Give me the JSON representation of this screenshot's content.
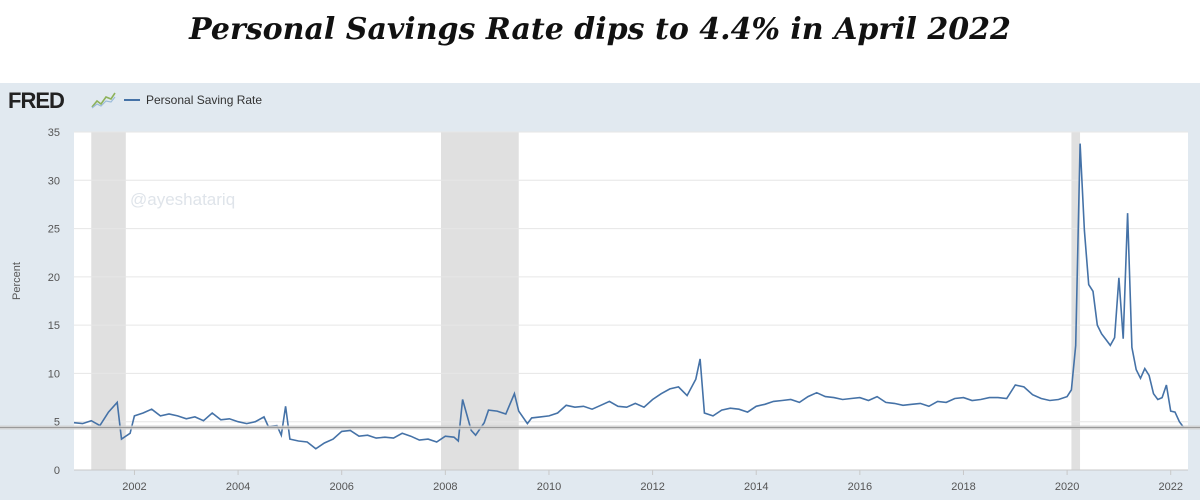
{
  "headline": "Personal Savings Rate dips to 4.4% in April 2022",
  "fred": {
    "logo_text": "FRED",
    "logo_icon": "fred-chart-icon",
    "legend_label": "Personal Saving Rate",
    "watermark": "@ayeshatariq"
  },
  "colors": {
    "line": "#4572a7",
    "recession_band": "#e0e0e0",
    "panel_background": "#e1e9f0",
    "plot_background": "#ffffff",
    "gridline": "#e6e6e6"
  },
  "chart_data": {
    "type": "line",
    "title": "",
    "xlabel": "",
    "ylabel": "Percent",
    "ylim": [
      0,
      35
    ],
    "yticks": [
      0,
      5,
      10,
      15,
      20,
      25,
      30,
      35
    ],
    "xlim": [
      "2000-11",
      "2022-05"
    ],
    "xticks": [
      "2002",
      "2004",
      "2006",
      "2008",
      "2010",
      "2012",
      "2014",
      "2016",
      "2018",
      "2020",
      "2022"
    ],
    "grid": true,
    "legend_position": "top-left",
    "recession_periods": [
      {
        "start": "2001-03",
        "end": "2001-11"
      },
      {
        "start": "2007-12",
        "end": "2009-06"
      },
      {
        "start": "2020-02",
        "end": "2020-04"
      }
    ],
    "series": [
      {
        "name": "Personal Saving Rate",
        "points": [
          [
            "2000-11",
            4.9
          ],
          [
            "2001-01",
            4.8
          ],
          [
            "2001-03",
            5.1
          ],
          [
            "2001-05",
            4.6
          ],
          [
            "2001-07",
            6.0
          ],
          [
            "2001-09",
            7.0
          ],
          [
            "2001-10",
            3.2
          ],
          [
            "2001-12",
            3.8
          ],
          [
            "2002-01",
            5.6
          ],
          [
            "2002-03",
            5.9
          ],
          [
            "2002-05",
            6.3
          ],
          [
            "2002-07",
            5.6
          ],
          [
            "2002-09",
            5.8
          ],
          [
            "2002-11",
            5.6
          ],
          [
            "2003-01",
            5.3
          ],
          [
            "2003-03",
            5.5
          ],
          [
            "2003-05",
            5.1
          ],
          [
            "2003-07",
            5.9
          ],
          [
            "2003-09",
            5.2
          ],
          [
            "2003-11",
            5.3
          ],
          [
            "2004-01",
            5.0
          ],
          [
            "2004-03",
            4.8
          ],
          [
            "2004-05",
            5.0
          ],
          [
            "2004-07",
            5.5
          ],
          [
            "2004-08",
            4.5
          ],
          [
            "2004-10",
            4.6
          ],
          [
            "2004-11",
            3.6
          ],
          [
            "2004-12",
            6.6
          ],
          [
            "2005-01",
            3.2
          ],
          [
            "2005-03",
            3.0
          ],
          [
            "2005-05",
            2.9
          ],
          [
            "2005-07",
            2.2
          ],
          [
            "2005-09",
            2.8
          ],
          [
            "2005-11",
            3.2
          ],
          [
            "2006-01",
            4.0
          ],
          [
            "2006-03",
            4.1
          ],
          [
            "2006-05",
            3.5
          ],
          [
            "2006-07",
            3.6
          ],
          [
            "2006-09",
            3.3
          ],
          [
            "2006-11",
            3.4
          ],
          [
            "2007-01",
            3.3
          ],
          [
            "2007-03",
            3.8
          ],
          [
            "2007-05",
            3.5
          ],
          [
            "2007-07",
            3.1
          ],
          [
            "2007-09",
            3.2
          ],
          [
            "2007-11",
            2.9
          ],
          [
            "2008-01",
            3.5
          ],
          [
            "2008-03",
            3.4
          ],
          [
            "2008-04",
            3.0
          ],
          [
            "2008-05",
            7.3
          ],
          [
            "2008-07",
            4.1
          ],
          [
            "2008-08",
            3.6
          ],
          [
            "2008-10",
            4.9
          ],
          [
            "2008-11",
            6.2
          ],
          [
            "2009-01",
            6.1
          ],
          [
            "2009-03",
            5.8
          ],
          [
            "2009-05",
            7.9
          ],
          [
            "2009-06",
            6.1
          ],
          [
            "2009-08",
            4.8
          ],
          [
            "2009-09",
            5.4
          ],
          [
            "2009-11",
            5.5
          ],
          [
            "2010-01",
            5.6
          ],
          [
            "2010-03",
            5.9
          ],
          [
            "2010-05",
            6.7
          ],
          [
            "2010-07",
            6.5
          ],
          [
            "2010-09",
            6.6
          ],
          [
            "2010-11",
            6.3
          ],
          [
            "2011-01",
            6.7
          ],
          [
            "2011-03",
            7.1
          ],
          [
            "2011-05",
            6.6
          ],
          [
            "2011-07",
            6.5
          ],
          [
            "2011-09",
            6.9
          ],
          [
            "2011-11",
            6.5
          ],
          [
            "2012-01",
            7.3
          ],
          [
            "2012-03",
            7.9
          ],
          [
            "2012-05",
            8.4
          ],
          [
            "2012-07",
            8.6
          ],
          [
            "2012-09",
            7.7
          ],
          [
            "2012-11",
            9.4
          ],
          [
            "2012-12",
            11.5
          ],
          [
            "2013-01",
            5.9
          ],
          [
            "2013-03",
            5.6
          ],
          [
            "2013-05",
            6.2
          ],
          [
            "2013-07",
            6.4
          ],
          [
            "2013-09",
            6.3
          ],
          [
            "2013-11",
            6.0
          ],
          [
            "2014-01",
            6.6
          ],
          [
            "2014-03",
            6.8
          ],
          [
            "2014-05",
            7.1
          ],
          [
            "2014-07",
            7.2
          ],
          [
            "2014-09",
            7.3
          ],
          [
            "2014-11",
            7.0
          ],
          [
            "2015-01",
            7.6
          ],
          [
            "2015-03",
            8.0
          ],
          [
            "2015-05",
            7.6
          ],
          [
            "2015-07",
            7.5
          ],
          [
            "2015-09",
            7.3
          ],
          [
            "2015-11",
            7.4
          ],
          [
            "2016-01",
            7.5
          ],
          [
            "2016-03",
            7.2
          ],
          [
            "2016-05",
            7.6
          ],
          [
            "2016-07",
            7.0
          ],
          [
            "2016-09",
            6.9
          ],
          [
            "2016-11",
            6.7
          ],
          [
            "2017-01",
            6.8
          ],
          [
            "2017-03",
            6.9
          ],
          [
            "2017-05",
            6.6
          ],
          [
            "2017-07",
            7.1
          ],
          [
            "2017-09",
            7.0
          ],
          [
            "2017-11",
            7.4
          ],
          [
            "2018-01",
            7.5
          ],
          [
            "2018-03",
            7.2
          ],
          [
            "2018-05",
            7.3
          ],
          [
            "2018-07",
            7.5
          ],
          [
            "2018-09",
            7.5
          ],
          [
            "2018-11",
            7.4
          ],
          [
            "2019-01",
            8.8
          ],
          [
            "2019-03",
            8.6
          ],
          [
            "2019-05",
            7.8
          ],
          [
            "2019-07",
            7.4
          ],
          [
            "2019-09",
            7.2
          ],
          [
            "2019-11",
            7.3
          ],
          [
            "2020-01",
            7.6
          ],
          [
            "2020-02",
            8.3
          ],
          [
            "2020-03",
            12.9
          ],
          [
            "2020-04",
            33.8
          ],
          [
            "2020-05",
            24.8
          ],
          [
            "2020-06",
            19.2
          ],
          [
            "2020-07",
            18.5
          ],
          [
            "2020-08",
            15.0
          ],
          [
            "2020-09",
            14.1
          ],
          [
            "2020-10",
            13.5
          ],
          [
            "2020-11",
            12.9
          ],
          [
            "2020-12",
            13.7
          ],
          [
            "2021-01",
            19.9
          ],
          [
            "2021-02",
            13.6
          ],
          [
            "2021-03",
            26.6
          ],
          [
            "2021-04",
            12.7
          ],
          [
            "2021-05",
            10.4
          ],
          [
            "2021-06",
            9.5
          ],
          [
            "2021-07",
            10.5
          ],
          [
            "2021-08",
            9.8
          ],
          [
            "2021-09",
            7.9
          ],
          [
            "2021-10",
            7.3
          ],
          [
            "2021-11",
            7.5
          ],
          [
            "2021-12",
            8.8
          ],
          [
            "2022-01",
            6.1
          ],
          [
            "2022-02",
            6.0
          ],
          [
            "2022-03",
            5.0
          ],
          [
            "2022-04",
            4.4
          ]
        ]
      }
    ],
    "reference_line": {
      "y": 4.4
    }
  }
}
